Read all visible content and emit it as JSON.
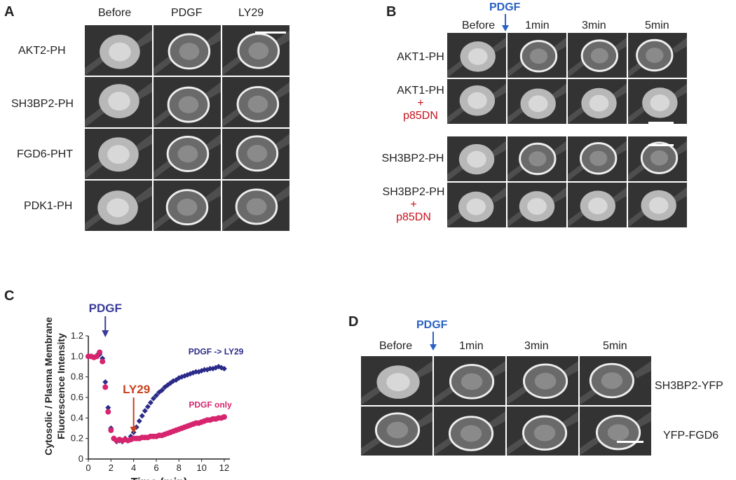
{
  "panelA": {
    "label": "A",
    "columns": [
      "Before",
      "PDGF",
      "LY29"
    ],
    "rows": [
      "AKT2-PH",
      "SH3BP2-PH",
      "FGD6-PHT",
      "PDK1-PH"
    ]
  },
  "panelB": {
    "label": "B",
    "stimulus": "PDGF",
    "columns": [
      "Before",
      "1min",
      "3min",
      "5min"
    ],
    "rows": [
      {
        "line1": "AKT1-PH",
        "plus": "",
        "line3": ""
      },
      {
        "line1": "AKT1-PH",
        "plus": "+",
        "line3": "p85DN"
      },
      {
        "line1": "SH3BP2-PH",
        "plus": "",
        "line3": ""
      },
      {
        "line1": "SH3BP2-PH",
        "plus": "+",
        "line3": "p85DN"
      }
    ]
  },
  "panelC": {
    "label": "C",
    "pdgf_label": "PDGF",
    "ly29_label": "LY29",
    "series_label_ly29": "PDGF  -> LY29",
    "series_label_pdgf": "PDGF only",
    "ylabel_line1": "Cytosolic / Plasma Membrane",
    "ylabel_line2": "Fluorescence Intensity",
    "xlabel": "Time (min)",
    "x_ticks": [
      "0",
      "2",
      "4",
      "6",
      "8",
      "10",
      "12"
    ],
    "y_ticks": [
      "0",
      "0.2",
      "0.4",
      "0.6",
      "0.8",
      "1.0",
      "1.2"
    ]
  },
  "panelD": {
    "label": "D",
    "stimulus": "PDGF",
    "columns": [
      "Before",
      "1min",
      "3min",
      "5min"
    ],
    "rows": [
      "SH3BP2-YFP",
      "YFP-FGD6"
    ]
  },
  "chart_data": {
    "type": "scatter",
    "title": "",
    "xlabel": "Time (min)",
    "ylabel": "Cytosolic / Plasma Membrane Fluorescence Intensity",
    "xlim": [
      0,
      12.5
    ],
    "ylim": [
      0,
      1.2
    ],
    "annotations": [
      {
        "text": "PDGF",
        "x": 1.5,
        "color": "#3a3a9a"
      },
      {
        "text": "LY29",
        "x": 4.0,
        "color": "#c8401c"
      }
    ],
    "series": [
      {
        "name": "PDGF  -> LY29",
        "color": "#2b2a8a",
        "marker": "diamond",
        "x": [
          0,
          0.25,
          0.5,
          0.75,
          1.0,
          1.25,
          1.5,
          1.75,
          2.0,
          2.25,
          2.5,
          2.75,
          3.0,
          3.25,
          3.5,
          3.75,
          4.0,
          4.25,
          4.5,
          4.75,
          5.0,
          5.25,
          5.5,
          5.75,
          6.0,
          6.25,
          6.5,
          6.75,
          7.0,
          7.25,
          7.5,
          7.75,
          8.0,
          8.25,
          8.5,
          8.75,
          9.0,
          9.25,
          9.5,
          9.75,
          10.0,
          10.25,
          10.5,
          10.75,
          11.0,
          11.25,
          11.5,
          11.75,
          12.0
        ],
        "y": [
          1.0,
          1.0,
          0.99,
          1.01,
          1.02,
          0.98,
          0.75,
          0.5,
          0.3,
          0.2,
          0.17,
          0.18,
          0.17,
          0.2,
          0.18,
          0.22,
          0.26,
          0.31,
          0.37,
          0.42,
          0.47,
          0.51,
          0.55,
          0.59,
          0.62,
          0.65,
          0.67,
          0.7,
          0.72,
          0.74,
          0.76,
          0.77,
          0.79,
          0.8,
          0.81,
          0.82,
          0.83,
          0.84,
          0.85,
          0.85,
          0.86,
          0.87,
          0.87,
          0.88,
          0.88,
          0.89,
          0.9,
          0.89,
          0.88
        ]
      },
      {
        "name": "PDGF only",
        "color": "#d6246e",
        "marker": "circle",
        "x": [
          0,
          0.25,
          0.5,
          0.75,
          1.0,
          1.25,
          1.5,
          1.75,
          2.0,
          2.25,
          2.5,
          2.75,
          3.0,
          3.25,
          3.5,
          3.75,
          4.0,
          4.25,
          4.5,
          4.75,
          5.0,
          5.25,
          5.5,
          5.75,
          6.0,
          6.25,
          6.5,
          6.75,
          7.0,
          7.25,
          7.5,
          7.75,
          8.0,
          8.25,
          8.5,
          8.75,
          9.0,
          9.25,
          9.5,
          9.75,
          10.0,
          10.25,
          10.5,
          10.75,
          11.0,
          11.25,
          11.5,
          11.75,
          12.0
        ],
        "y": [
          1.0,
          1.0,
          0.99,
          1.0,
          1.04,
          0.95,
          0.7,
          0.46,
          0.28,
          0.2,
          0.18,
          0.19,
          0.18,
          0.19,
          0.18,
          0.19,
          0.2,
          0.2,
          0.2,
          0.21,
          0.21,
          0.21,
          0.22,
          0.22,
          0.22,
          0.23,
          0.23,
          0.24,
          0.25,
          0.26,
          0.27,
          0.28,
          0.29,
          0.3,
          0.31,
          0.32,
          0.33,
          0.34,
          0.35,
          0.35,
          0.36,
          0.37,
          0.38,
          0.38,
          0.39,
          0.39,
          0.4,
          0.4,
          0.41
        ]
      }
    ],
    "grid": false
  }
}
